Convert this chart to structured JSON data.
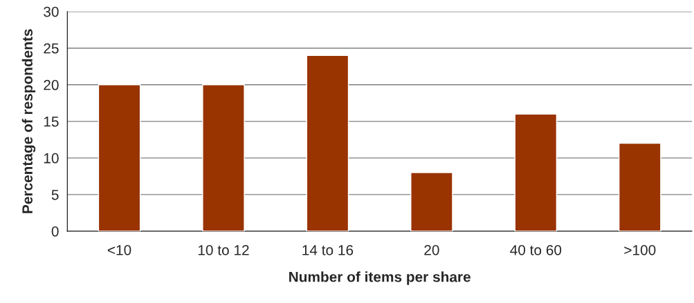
{
  "chart_data": {
    "type": "bar",
    "xlabel": "Number of items per share",
    "ylabel": "Percentage of respondents",
    "categories": [
      "<10",
      "10 to 12",
      "14 to 16",
      "20",
      "40 to 60",
      ">100"
    ],
    "values": [
      20,
      20,
      24,
      8,
      16,
      12
    ],
    "color": "#993300",
    "ylim": [
      0,
      30
    ],
    "yticks": [
      0,
      5,
      10,
      15,
      20,
      25,
      30
    ],
    "grid": "y",
    "legend": false
  }
}
